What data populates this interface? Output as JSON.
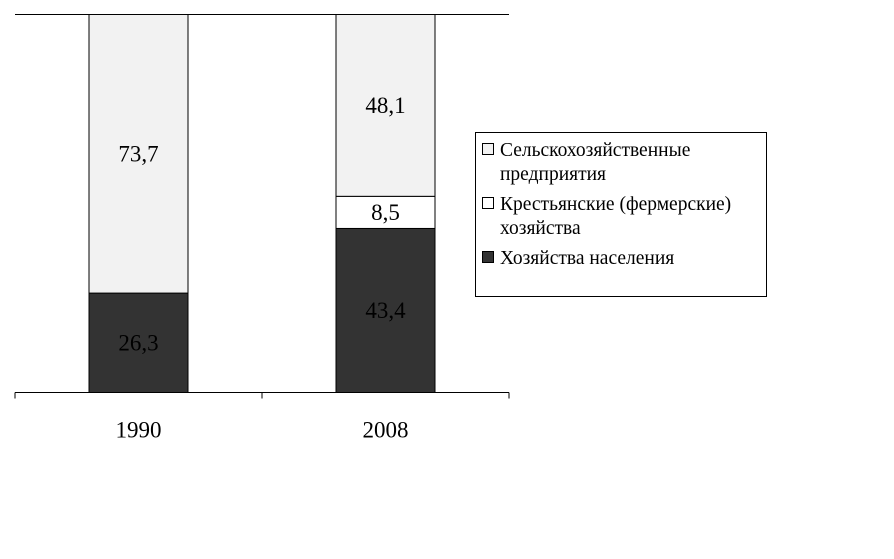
{
  "chart_data": {
    "type": "bar",
    "stacked": true,
    "categories": [
      "1990",
      "2008"
    ],
    "series": [
      {
        "name": "Хозяйства населения",
        "values": [
          26.3,
          43.4
        ],
        "labels": [
          "26,3",
          "43,4"
        ],
        "color": "#333333"
      },
      {
        "name": "Крестьянские (фермерские) хозяйства",
        "values": [
          0,
          8.5
        ],
        "labels": [
          "",
          "8,5"
        ],
        "color": "#ffffff"
      },
      {
        "name": "Сельскохозяйственные предприятия",
        "values": [
          73.7,
          48.1
        ],
        "labels": [
          "73,7",
          "48,1"
        ],
        "color": "#f2f2f2"
      }
    ],
    "legend_order": [
      2,
      1,
      0
    ],
    "ylim": [
      0,
      100
    ],
    "grid": false,
    "legend_position": "right"
  }
}
